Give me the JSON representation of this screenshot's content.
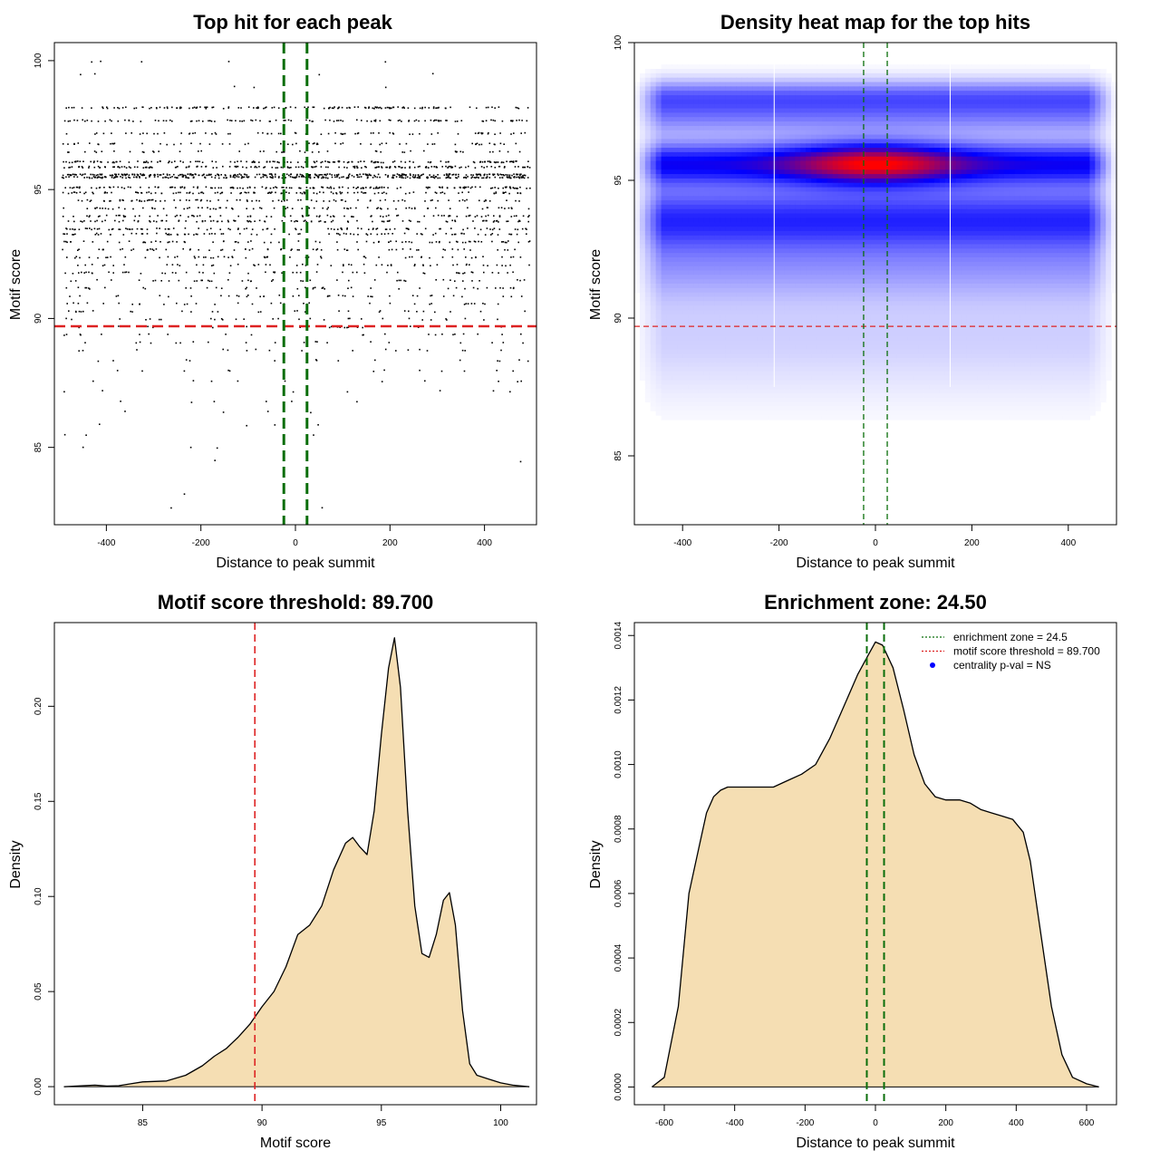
{
  "chart_data": [
    {
      "type": "scatter",
      "title": "Top hit for each peak",
      "xlabel": "Distance to peak summit",
      "ylabel": "Motif score",
      "xlim": [
        -510,
        510
      ],
      "ylim": [
        82,
        100.7
      ],
      "xticks": [
        -400,
        -200,
        0,
        200,
        400
      ],
      "yticks": [
        85,
        90,
        95,
        100
      ],
      "xtick_labels": [
        "-400",
        "-200",
        "0",
        "200",
        "400"
      ],
      "ytick_labels": [
        "85",
        "90",
        "95",
        "100"
      ],
      "score_threshold": 89.7,
      "enrichment_zone": [
        -24.5,
        24.5
      ],
      "threshold_color": "#dd2222",
      "zone_color": "#0a6e0a",
      "point_color": "#000000",
      "x_range": [
        -495,
        495
      ],
      "score_levels": [
        {
          "score": 98.2,
          "count": 140
        },
        {
          "score": 97.7,
          "count": 110
        },
        {
          "score": 97.2,
          "count": 70
        },
        {
          "score": 96.8,
          "count": 60
        },
        {
          "score": 96.5,
          "count": 45
        },
        {
          "score": 96.1,
          "count": 150
        },
        {
          "score": 95.9,
          "count": 170
        },
        {
          "score": 95.6,
          "count": 260
        },
        {
          "score": 95.5,
          "count": 240
        },
        {
          "score": 95.1,
          "count": 160
        },
        {
          "score": 94.9,
          "count": 120
        },
        {
          "score": 94.6,
          "count": 90
        },
        {
          "score": 94.3,
          "count": 80
        },
        {
          "score": 94.0,
          "count": 90
        },
        {
          "score": 93.8,
          "count": 100
        },
        {
          "score": 93.5,
          "count": 95
        },
        {
          "score": 93.3,
          "count": 85
        },
        {
          "score": 93.0,
          "count": 75
        },
        {
          "score": 92.7,
          "count": 65
        },
        {
          "score": 92.4,
          "count": 60
        },
        {
          "score": 92.1,
          "count": 55
        },
        {
          "score": 91.8,
          "count": 55
        },
        {
          "score": 91.5,
          "count": 45
        },
        {
          "score": 91.2,
          "count": 45
        },
        {
          "score": 90.9,
          "count": 40
        },
        {
          "score": 90.6,
          "count": 35
        },
        {
          "score": 90.3,
          "count": 30
        },
        {
          "score": 90.0,
          "count": 30
        },
        {
          "score": 89.7,
          "count": 25
        },
        {
          "score": 89.4,
          "count": 22
        },
        {
          "score": 89.1,
          "count": 20
        },
        {
          "score": 88.8,
          "count": 18
        },
        {
          "score": 88.4,
          "count": 14
        },
        {
          "score": 88.0,
          "count": 12
        },
        {
          "score": 87.6,
          "count": 10
        },
        {
          "score": 87.2,
          "count": 7
        },
        {
          "score": 86.8,
          "count": 6
        },
        {
          "score": 86.4,
          "count": 4
        },
        {
          "score": 85.9,
          "count": 4
        },
        {
          "score": 85.5,
          "count": 3
        },
        {
          "score": 85.0,
          "count": 3
        },
        {
          "score": 84.5,
          "count": 2
        },
        {
          "score": 83.2,
          "count": 1
        },
        {
          "score": 82.7,
          "count": 2
        },
        {
          "score": 99.0,
          "count": 3
        },
        {
          "score": 99.5,
          "count": 4
        },
        {
          "score": 100.0,
          "count": 5
        }
      ]
    },
    {
      "type": "heatmap",
      "title": "Density heat map for the top hits",
      "xlabel": "Distance to peak summit",
      "ylabel": "Motif score",
      "xlim": [
        -500,
        500
      ],
      "ylim": [
        82.5,
        100
      ],
      "xticks": [
        -400,
        -200,
        0,
        200,
        400
      ],
      "yticks": [
        85,
        90,
        95,
        100
      ],
      "xtick_labels": [
        "-400",
        "-200",
        "0",
        "200",
        "400"
      ],
      "ytick_labels": [
        "85",
        "90",
        "95",
        "100"
      ],
      "score_threshold": 89.7,
      "enrichment_zone": [
        -24.5,
        24.5
      ],
      "white_lines_x": [
        -210,
        155
      ],
      "colors": {
        "low": "#ffffff",
        "mid": "#0000ff",
        "high": "#ff0000"
      },
      "density_peak": {
        "x": 0,
        "y": 95.5
      },
      "bands": [
        {
          "y": 95.6,
          "width": 0.55,
          "weight": 1.0
        },
        {
          "y": 93.6,
          "width": 0.8,
          "weight": 0.45
        },
        {
          "y": 98.0,
          "width": 0.45,
          "weight": 0.35
        },
        {
          "y": 97.2,
          "width": 0.45,
          "weight": 0.2
        },
        {
          "y": 91.8,
          "width": 0.9,
          "weight": 0.2
        },
        {
          "y": 89.5,
          "width": 1.0,
          "weight": 0.08
        },
        {
          "y": 88.0,
          "width": 1.2,
          "weight": 0.04
        }
      ]
    },
    {
      "type": "area",
      "title": "Motif score threshold: 89.700",
      "xlabel": "Motif score",
      "ylabel": "Density",
      "xlim": [
        81.3,
        101.5
      ],
      "ylim": [
        -0.0095,
        0.244
      ],
      "xticks": [
        85,
        90,
        95,
        100
      ],
      "yticks": [
        0.0,
        0.05,
        0.1,
        0.15,
        0.2
      ],
      "xtick_labels": [
        "85",
        "90",
        "95",
        "100"
      ],
      "ytick_labels": [
        "0.00",
        "0.05",
        "0.10",
        "0.15",
        "0.20"
      ],
      "fill": "#f5deb3",
      "threshold_line": 89.7,
      "threshold_color": "#dd2222",
      "x": [
        81.7,
        82.5,
        83.0,
        83.5,
        84.0,
        84.5,
        85.0,
        86.0,
        86.8,
        87.5,
        88.0,
        88.5,
        89.0,
        89.5,
        90.0,
        90.5,
        91.0,
        91.5,
        92.0,
        92.5,
        93.0,
        93.5,
        93.8,
        94.1,
        94.4,
        94.7,
        95.0,
        95.3,
        95.55,
        95.8,
        96.1,
        96.4,
        96.7,
        97.0,
        97.3,
        97.6,
        97.85,
        98.1,
        98.4,
        98.7,
        99.0,
        99.5,
        100.0,
        100.5,
        101.2
      ],
      "y": [
        0.0,
        0.0005,
        0.0008,
        0.0003,
        0.0005,
        0.0015,
        0.0025,
        0.003,
        0.006,
        0.011,
        0.016,
        0.02,
        0.026,
        0.033,
        0.042,
        0.05,
        0.063,
        0.08,
        0.085,
        0.095,
        0.114,
        0.128,
        0.131,
        0.126,
        0.122,
        0.145,
        0.185,
        0.22,
        0.236,
        0.21,
        0.145,
        0.095,
        0.07,
        0.068,
        0.08,
        0.098,
        0.102,
        0.085,
        0.04,
        0.012,
        0.006,
        0.004,
        0.002,
        0.0008,
        0.0
      ]
    },
    {
      "type": "area",
      "title": "Enrichment zone: 24.50",
      "xlabel": "Distance to peak summit",
      "ylabel": "Density",
      "xlim": [
        -685,
        685
      ],
      "ylim": [
        -5.5e-05,
        0.00144
      ],
      "xticks": [
        -600,
        -400,
        -200,
        0,
        200,
        400,
        600
      ],
      "yticks": [
        0.0,
        0.0002,
        0.0004,
        0.0006,
        0.0008,
        0.001,
        0.0012,
        0.0014
      ],
      "xtick_labels": [
        "-600",
        "-400",
        "-200",
        "0",
        "200",
        "400",
        "600"
      ],
      "ytick_labels": [
        "0.0000",
        "0.0002",
        "0.0004",
        "0.0006",
        "0.0008",
        "0.0010",
        "0.0012",
        "0.0014"
      ],
      "fill": "#f5deb3",
      "zone_lines": [
        -24.5,
        24.5
      ],
      "zone_color": "#0a6e0a",
      "x": [
        -635,
        -600,
        -560,
        -530,
        -500,
        -480,
        -460,
        -440,
        -420,
        -400,
        -370,
        -330,
        -290,
        -250,
        -210,
        -170,
        -130,
        -90,
        -50,
        -20,
        0,
        20,
        50,
        80,
        110,
        140,
        170,
        200,
        240,
        270,
        300,
        330,
        360,
        390,
        420,
        440,
        460,
        480,
        500,
        530,
        560,
        600,
        635
      ],
      "y": [
        0.0,
        3e-05,
        0.00025,
        0.0006,
        0.00075,
        0.00085,
        0.0009,
        0.00092,
        0.00093,
        0.00093,
        0.00093,
        0.00093,
        0.00093,
        0.00095,
        0.00097,
        0.001,
        0.00108,
        0.00118,
        0.00128,
        0.00134,
        0.00138,
        0.00137,
        0.0013,
        0.00117,
        0.00103,
        0.00094,
        0.0009,
        0.00089,
        0.00089,
        0.00088,
        0.00086,
        0.00085,
        0.00084,
        0.00083,
        0.00079,
        0.0007,
        0.00055,
        0.0004,
        0.00025,
        0.0001,
        3e-05,
        1e-05,
        0.0
      ],
      "legend": {
        "position": "top-right",
        "entries": [
          {
            "label": "enrichment zone = 24.5",
            "color": "#0a6e0a",
            "style": "dotted"
          },
          {
            "label": "motif score threshold = 89.700",
            "color": "#dd2222",
            "style": "dotted"
          },
          {
            "label": "centrality p-val = NS",
            "color": "#0000ff",
            "style": "point"
          }
        ]
      }
    }
  ]
}
